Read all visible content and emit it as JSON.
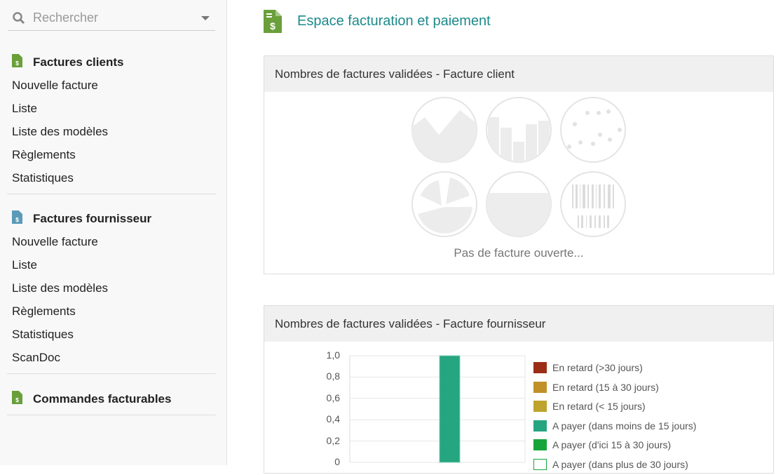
{
  "sidebar": {
    "search_placeholder": "Rechercher",
    "sections": [
      {
        "title": "Factures clients",
        "icon": "invoice-icon",
        "icon_color": "#6a9f3a",
        "items": [
          "Nouvelle facture",
          "Liste",
          "Liste des modèles",
          "Règlements",
          "Statistiques"
        ]
      },
      {
        "title": "Factures fournisseur",
        "icon": "invoice-icon",
        "icon_color": "#5a9ab8",
        "items": [
          "Nouvelle facture",
          "Liste",
          "Liste des modèles",
          "Règlements",
          "Statistiques",
          "ScanDoc"
        ]
      },
      {
        "title": "Commandes facturables",
        "icon": "invoice-icon",
        "icon_color": "#6a9f3a",
        "items": []
      }
    ]
  },
  "main": {
    "title": "Espace facturation et paiement",
    "box1": {
      "title": "Nombres de factures validées - Facture client",
      "empty": "Pas de facture ouverte..."
    },
    "box2": {
      "title": "Nombres de factures validées - Facture fournisseur"
    }
  },
  "chart_data": {
    "type": "bar",
    "ylim": [
      0,
      1
    ],
    "yticks": [
      "1,0",
      "0,8",
      "0,6",
      "0,4",
      "0,2",
      "0"
    ],
    "series": [
      {
        "name": "En retard (>30 jours)",
        "color": "#9b2d16",
        "values": [
          0
        ]
      },
      {
        "name": "En retard (15 à 30 jours)",
        "color": "#c09128",
        "values": [
          0
        ]
      },
      {
        "name": "En retard (< 15 jours)",
        "color": "#bea42c",
        "values": [
          0
        ]
      },
      {
        "name": "A payer (dans moins de 15 jours)",
        "color": "#25a580",
        "values": [
          1
        ]
      },
      {
        "name": "A payer (d'ici 15 à 30 jours)",
        "color": "#17a53b",
        "values": [
          0
        ]
      },
      {
        "name": "A payer (dans plus de 30 jours)",
        "color": "#ffffff",
        "values": [
          0
        ]
      }
    ]
  }
}
